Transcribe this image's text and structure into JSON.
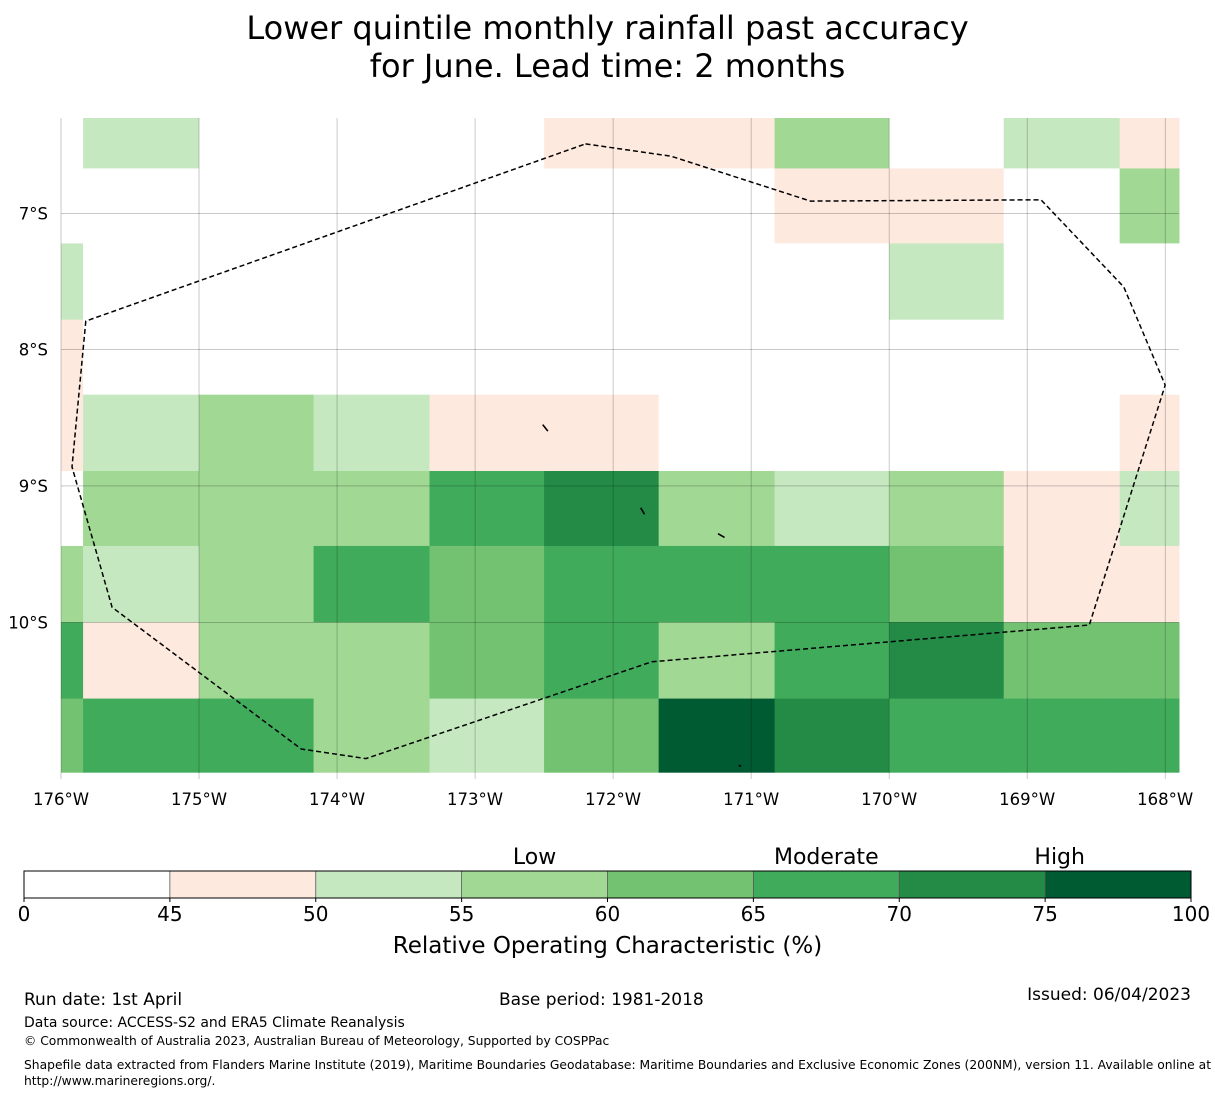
{
  "title": {
    "line1": "Lower quintile monthly rainfall past accuracy",
    "line2": "for June. Lead time: 2 months"
  },
  "map": {
    "lon_range": [
      -176,
      -167.9
    ],
    "lat_range": [
      -11.15,
      -6.3
    ],
    "lat_tick_labels": [
      "7°S",
      "8°S",
      "9°S",
      "10°S"
    ],
    "lat_ticks": [
      -7,
      -8,
      -9,
      -10
    ],
    "lon_tick_labels": [
      "176°W",
      "175°W",
      "174°W",
      "173°W",
      "172°W",
      "171°W",
      "170°W",
      "169°W",
      "168°W"
    ],
    "lon_ticks": [
      -176,
      -175,
      -174,
      -173,
      -172,
      -171,
      -170,
      -169,
      -168
    ],
    "lon_edges": [
      -176,
      -175.84,
      -175.0,
      -174.17,
      -173.33,
      -172.5,
      -171.67,
      -170.83,
      -170.0,
      -169.17,
      -168.33,
      -167.9
    ],
    "rows": [
      {
        "lat_top": -6.3,
        "lat_bottom": -6.67,
        "classes": [
          0,
          2,
          0,
          0,
          0,
          1,
          1,
          3,
          0,
          2,
          1
        ]
      },
      {
        "lat_top": -6.67,
        "lat_bottom": -7.22,
        "classes": [
          0,
          0,
          0,
          0,
          0,
          0,
          0,
          1,
          1,
          0,
          3
        ]
      },
      {
        "lat_top": -7.22,
        "lat_bottom": -7.78,
        "classes": [
          2,
          0,
          0,
          0,
          0,
          0,
          0,
          0,
          2,
          0,
          0
        ]
      },
      {
        "lat_top": -7.78,
        "lat_bottom": -8.33,
        "classes": [
          1,
          0,
          0,
          0,
          0,
          0,
          0,
          0,
          0,
          0,
          0
        ]
      },
      {
        "lat_top": -8.33,
        "lat_bottom": -8.89,
        "classes": [
          1,
          2,
          3,
          2,
          1,
          1,
          0,
          0,
          0,
          0,
          1
        ]
      },
      {
        "lat_top": -8.89,
        "lat_bottom": -9.44,
        "classes": [
          0,
          3,
          3,
          3,
          5,
          6,
          3,
          2,
          3,
          1,
          2
        ]
      },
      {
        "lat_top": -9.44,
        "lat_bottom": -10.0,
        "classes": [
          3,
          2,
          3,
          5,
          4,
          5,
          5,
          5,
          4,
          1,
          1
        ]
      },
      {
        "lat_top": -10.0,
        "lat_bottom": -10.56,
        "classes": [
          5,
          1,
          3,
          3,
          4,
          5,
          3,
          5,
          6,
          4,
          4
        ]
      },
      {
        "lat_top": -10.56,
        "lat_bottom": -11.1,
        "classes": [
          4,
          5,
          5,
          3,
          2,
          4,
          7,
          6,
          5,
          5,
          5
        ]
      }
    ],
    "eez_boundary": [
      [
        -172.2,
        -6.49
      ],
      [
        -171.58,
        -6.58
      ],
      [
        -170.57,
        -6.91
      ],
      [
        -168.9,
        -6.9
      ],
      [
        -168.3,
        -7.54
      ],
      [
        -168.0,
        -8.26
      ],
      [
        -168.55,
        -10.02
      ],
      [
        -171.72,
        -10.29
      ],
      [
        -173.79,
        -11.0
      ],
      [
        -174.26,
        -10.93
      ],
      [
        -175.63,
        -9.89
      ],
      [
        -175.92,
        -8.86
      ],
      [
        -175.82,
        -7.79
      ],
      [
        -172.2,
        -6.49
      ]
    ],
    "islands": [
      [
        [
          -172.51,
          -8.55
        ],
        [
          -172.48,
          -8.59
        ]
      ],
      [
        [
          -171.8,
          -9.16
        ],
        [
          -171.78,
          -9.2
        ]
      ],
      [
        [
          -171.24,
          -9.35
        ],
        [
          -171.2,
          -9.37
        ]
      ],
      [
        [
          -171.09,
          -11.05
        ],
        [
          -171.08,
          -11.05
        ]
      ]
    ]
  },
  "legend": {
    "colors": [
      "#ffffff",
      "#fee9df",
      "#c6e8c0",
      "#a0d894",
      "#72c271",
      "#41ab5c",
      "#238b45",
      "#005a32"
    ],
    "boundaries": [
      0,
      45,
      50,
      55,
      60,
      65,
      70,
      75,
      100
    ],
    "tick_labels": [
      "0",
      "45",
      "50",
      "55",
      "60",
      "65",
      "70",
      "75",
      "100"
    ],
    "category_labels": [
      "Low",
      "Moderate",
      "High"
    ],
    "category_positions": [
      57.5,
      67.5,
      77.5
    ],
    "axis_label": "Relative Operating Characteristic (%)"
  },
  "footer": {
    "run_date": "Run date: 1st April",
    "base_period": "Base period: 1981-2018",
    "issued": "Issued: 06/04/2023",
    "data_source": "Data source: ACCESS-S2 and ERA5 Climate Reanalysis",
    "copyright": "© Commonwealth of Australia 2023, Australian Bureau of Meteorology, Supported by COSPPac",
    "shapefile_line1": "Shapefile data extracted from Flanders Marine Institute (2019), Maritime Boundaries Geodatabase: Maritime Boundaries and Exclusive Economic Zones (200NM), version 11. Available online at",
    "shapefile_line2": "http://www.marineregions.org/."
  }
}
